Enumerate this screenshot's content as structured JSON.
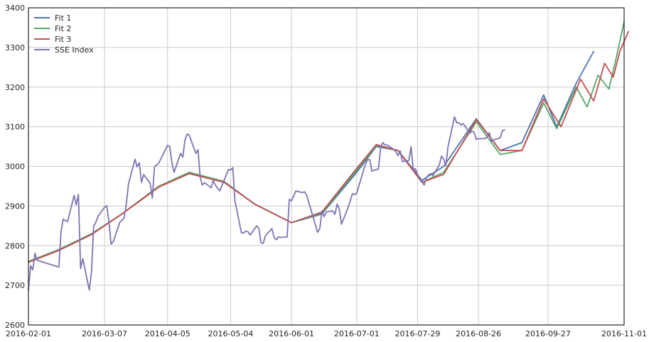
{
  "chart_data": {
    "type": "line",
    "title": "",
    "xlabel": "",
    "ylabel": "",
    "xlim": [
      "2016-02-01",
      "2016-11-01"
    ],
    "ylim": [
      2600,
      3400
    ],
    "grid": true,
    "legend_position": "top-left",
    "x_ticks": [
      "2016-02-01",
      "2016-03-07",
      "2016-04-05",
      "2016-05-04",
      "2016-06-01",
      "2016-07-01",
      "2016-07-29",
      "2016-08-26",
      "2016-09-27",
      "2016-11-01"
    ],
    "y_ticks": [
      2600,
      2700,
      2800,
      2900,
      3000,
      3100,
      3200,
      3300,
      3400
    ],
    "series": [
      {
        "name": "Fit 1",
        "color": "#4c72b0",
        "points": [
          [
            "2016-02-01",
            2760
          ],
          [
            "2016-02-15",
            2790
          ],
          [
            "2016-03-01",
            2830
          ],
          [
            "2016-03-15",
            2880
          ],
          [
            "2016-04-01",
            2950
          ],
          [
            "2016-04-15",
            2982
          ],
          [
            "2016-05-01",
            2960
          ],
          [
            "2016-05-15",
            2905
          ],
          [
            "2016-06-01",
            2858
          ],
          [
            "2016-06-15",
            2880
          ],
          [
            "2016-07-01",
            2985
          ],
          [
            "2016-07-10",
            3050
          ],
          [
            "2016-07-20",
            3040
          ],
          [
            "2016-07-31",
            2965
          ],
          [
            "2016-08-10",
            3000
          ],
          [
            "2016-08-25",
            3120
          ],
          [
            "2016-09-05",
            3040
          ],
          [
            "2016-09-15",
            3060
          ],
          [
            "2016-09-25",
            3180
          ],
          [
            "2016-10-01",
            3100
          ],
          [
            "2016-10-10",
            3210
          ],
          [
            "2016-10-18",
            3290
          ]
        ]
      },
      {
        "name": "Fit 2",
        "color": "#55a868",
        "points": [
          [
            "2016-02-01",
            2760
          ],
          [
            "2016-02-15",
            2790
          ],
          [
            "2016-03-01",
            2830
          ],
          [
            "2016-03-15",
            2880
          ],
          [
            "2016-04-01",
            2950
          ],
          [
            "2016-04-15",
            2985
          ],
          [
            "2016-05-01",
            2962
          ],
          [
            "2016-05-15",
            2905
          ],
          [
            "2016-06-01",
            2858
          ],
          [
            "2016-06-15",
            2882
          ],
          [
            "2016-07-01",
            2990
          ],
          [
            "2016-07-10",
            3052
          ],
          [
            "2016-07-20",
            3040
          ],
          [
            "2016-07-31",
            2960
          ],
          [
            "2016-08-10",
            2985
          ],
          [
            "2016-08-25",
            3112
          ],
          [
            "2016-09-05",
            3030
          ],
          [
            "2016-09-15",
            3040
          ],
          [
            "2016-09-25",
            3160
          ],
          [
            "2016-10-01",
            3095
          ],
          [
            "2016-10-10",
            3200
          ],
          [
            "2016-10-15",
            3150
          ],
          [
            "2016-10-20",
            3230
          ],
          [
            "2016-10-25",
            3195
          ],
          [
            "2016-10-28",
            3265
          ],
          [
            "2016-11-01",
            3365
          ]
        ]
      },
      {
        "name": "Fit 3",
        "color": "#c44e52",
        "points": [
          [
            "2016-02-01",
            2758
          ],
          [
            "2016-02-15",
            2788
          ],
          [
            "2016-03-01",
            2828
          ],
          [
            "2016-03-15",
            2880
          ],
          [
            "2016-04-01",
            2948
          ],
          [
            "2016-04-15",
            2982
          ],
          [
            "2016-05-01",
            2960
          ],
          [
            "2016-05-15",
            2905
          ],
          [
            "2016-06-01",
            2858
          ],
          [
            "2016-06-15",
            2885
          ],
          [
            "2016-07-01",
            2995
          ],
          [
            "2016-07-10",
            3055
          ],
          [
            "2016-07-20",
            3040
          ],
          [
            "2016-07-31",
            2960
          ],
          [
            "2016-08-10",
            2980
          ],
          [
            "2016-08-25",
            3118
          ],
          [
            "2016-09-05",
            3040
          ],
          [
            "2016-09-15",
            3040
          ],
          [
            "2016-09-25",
            3170
          ],
          [
            "2016-10-03",
            3100
          ],
          [
            "2016-10-12",
            3220
          ],
          [
            "2016-10-18",
            3165
          ],
          [
            "2016-10-23",
            3260
          ],
          [
            "2016-10-27",
            3225
          ],
          [
            "2016-10-30",
            3290
          ],
          [
            "2016-11-03",
            3340
          ]
        ]
      },
      {
        "name": "SSE Index",
        "color": "#8172b2",
        "points": [
          [
            "2016-02-01",
            2688
          ],
          [
            "2016-02-02",
            2749
          ],
          [
            "2016-02-03",
            2739
          ],
          [
            "2016-02-04",
            2781
          ],
          [
            "2016-02-05",
            2763
          ],
          [
            "2016-02-15",
            2746
          ],
          [
            "2016-02-16",
            2836
          ],
          [
            "2016-02-17",
            2867
          ],
          [
            "2016-02-18",
            2863
          ],
          [
            "2016-02-19",
            2861
          ],
          [
            "2016-02-22",
            2927
          ],
          [
            "2016-02-23",
            2903
          ],
          [
            "2016-02-24",
            2929
          ],
          [
            "2016-02-25",
            2742
          ],
          [
            "2016-02-26",
            2767
          ],
          [
            "2016-02-29",
            2688
          ],
          [
            "2016-03-01",
            2733
          ],
          [
            "2016-03-02",
            2849
          ],
          [
            "2016-03-03",
            2859
          ],
          [
            "2016-03-04",
            2874
          ],
          [
            "2016-03-07",
            2897
          ],
          [
            "2016-03-08",
            2901
          ],
          [
            "2016-03-09",
            2862
          ],
          [
            "2016-03-10",
            2804
          ],
          [
            "2016-03-11",
            2810
          ],
          [
            "2016-03-14",
            2859
          ],
          [
            "2016-03-15",
            2864
          ],
          [
            "2016-03-16",
            2870
          ],
          [
            "2016-03-17",
            2904
          ],
          [
            "2016-03-18",
            2955
          ],
          [
            "2016-03-21",
            3018
          ],
          [
            "2016-03-22",
            2999
          ],
          [
            "2016-03-23",
            3009
          ],
          [
            "2016-03-24",
            2960
          ],
          [
            "2016-03-25",
            2979
          ],
          [
            "2016-03-28",
            2957
          ],
          [
            "2016-03-29",
            2920
          ],
          [
            "2016-03-30",
            3000
          ],
          [
            "2016-03-31",
            3003
          ],
          [
            "2016-04-01",
            3009
          ],
          [
            "2016-04-05",
            3053
          ],
          [
            "2016-04-06",
            3050
          ],
          [
            "2016-04-07",
            3008
          ],
          [
            "2016-04-08",
            2985
          ],
          [
            "2016-04-11",
            3033
          ],
          [
            "2016-04-12",
            3023
          ],
          [
            "2016-04-13",
            3066
          ],
          [
            "2016-04-14",
            3082
          ],
          [
            "2016-04-15",
            3078
          ],
          [
            "2016-04-18",
            3033
          ],
          [
            "2016-04-19",
            3042
          ],
          [
            "2016-04-20",
            2972
          ],
          [
            "2016-04-21",
            2953
          ],
          [
            "2016-04-22",
            2959
          ],
          [
            "2016-04-25",
            2946
          ],
          [
            "2016-04-26",
            2964
          ],
          [
            "2016-04-27",
            2953
          ],
          [
            "2016-04-28",
            2945
          ],
          [
            "2016-04-29",
            2938
          ],
          [
            "2016-05-03",
            2992
          ],
          [
            "2016-05-04",
            2991
          ],
          [
            "2016-05-05",
            2997
          ],
          [
            "2016-05-06",
            2913
          ],
          [
            "2016-05-09",
            2832
          ],
          [
            "2016-05-10",
            2832
          ],
          [
            "2016-05-11",
            2837
          ],
          [
            "2016-05-12",
            2835
          ],
          [
            "2016-05-13",
            2827
          ],
          [
            "2016-05-16",
            2850
          ],
          [
            "2016-05-17",
            2843
          ],
          [
            "2016-05-18",
            2807
          ],
          [
            "2016-05-19",
            2806
          ],
          [
            "2016-05-20",
            2825
          ],
          [
            "2016-05-23",
            2843
          ],
          [
            "2016-05-24",
            2821
          ],
          [
            "2016-05-25",
            2815
          ],
          [
            "2016-05-26",
            2822
          ],
          [
            "2016-05-27",
            2821
          ],
          [
            "2016-05-30",
            2822
          ],
          [
            "2016-05-31",
            2917
          ],
          [
            "2016-06-01",
            2913
          ],
          [
            "2016-06-02",
            2925
          ],
          [
            "2016-06-03",
            2938
          ],
          [
            "2016-06-06",
            2934
          ],
          [
            "2016-06-07",
            2936
          ],
          [
            "2016-06-08",
            2927
          ],
          [
            "2016-06-13",
            2834
          ],
          [
            "2016-06-14",
            2842
          ],
          [
            "2016-06-15",
            2888
          ],
          [
            "2016-06-16",
            2873
          ],
          [
            "2016-06-17",
            2885
          ],
          [
            "2016-06-20",
            2888
          ],
          [
            "2016-06-21",
            2879
          ],
          [
            "2016-06-22",
            2905
          ],
          [
            "2016-06-23",
            2892
          ],
          [
            "2016-06-24",
            2854
          ],
          [
            "2016-06-27",
            2896
          ],
          [
            "2016-06-28",
            2912
          ],
          [
            "2016-06-29",
            2931
          ],
          [
            "2016-06-30",
            2929
          ],
          [
            "2016-07-01",
            2932
          ],
          [
            "2016-07-04",
            2988
          ],
          [
            "2016-07-05",
            3006
          ],
          [
            "2016-07-06",
            3017
          ],
          [
            "2016-07-07",
            3017
          ],
          [
            "2016-07-08",
            2988
          ],
          [
            "2016-07-11",
            2994
          ],
          [
            "2016-07-12",
            3049
          ],
          [
            "2016-07-13",
            3060
          ],
          [
            "2016-07-14",
            3054
          ],
          [
            "2016-07-15",
            3054
          ],
          [
            "2016-07-18",
            3043
          ],
          [
            "2016-07-19",
            3037
          ],
          [
            "2016-07-20",
            3027
          ],
          [
            "2016-07-21",
            3039
          ],
          [
            "2016-07-22",
            3012
          ],
          [
            "2016-07-25",
            3015
          ],
          [
            "2016-07-26",
            3050
          ],
          [
            "2016-07-27",
            2992
          ],
          [
            "2016-07-28",
            2994
          ],
          [
            "2016-07-29",
            2979
          ],
          [
            "2016-08-01",
            2953
          ],
          [
            "2016-08-02",
            2971
          ],
          [
            "2016-08-03",
            2978
          ],
          [
            "2016-08-04",
            2982
          ],
          [
            "2016-08-05",
            2976
          ],
          [
            "2016-08-08",
            3004
          ],
          [
            "2016-08-09",
            3026
          ],
          [
            "2016-08-10",
            3018
          ],
          [
            "2016-08-11",
            3002
          ],
          [
            "2016-08-12",
            3050
          ],
          [
            "2016-08-15",
            3125
          ],
          [
            "2016-08-16",
            3110
          ],
          [
            "2016-08-17",
            3110
          ],
          [
            "2016-08-18",
            3104
          ],
          [
            "2016-08-19",
            3108
          ],
          [
            "2016-08-22",
            3084
          ],
          [
            "2016-08-23",
            3089
          ],
          [
            "2016-08-24",
            3086
          ],
          [
            "2016-08-25",
            3068
          ],
          [
            "2016-08-26",
            3070
          ],
          [
            "2016-08-29",
            3070
          ],
          [
            "2016-08-30",
            3075
          ],
          [
            "2016-08-31",
            3085
          ],
          [
            "2016-09-01",
            3063
          ],
          [
            "2016-09-02",
            3067
          ],
          [
            "2016-09-05",
            3072
          ],
          [
            "2016-09-06",
            3090
          ],
          [
            "2016-09-07",
            3092
          ]
        ]
      }
    ]
  }
}
